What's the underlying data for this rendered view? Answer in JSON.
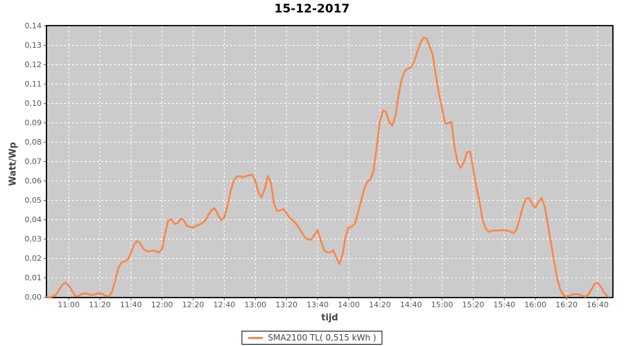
{
  "chart": {
    "title": "15-12-2017",
    "xlabel": "tijd",
    "ylabel": "Watt/Wp",
    "legend": {
      "label": "SMA2100 TL( 0,515 kWh )"
    },
    "colors": {
      "series": "#FA8648",
      "plot_bg": "#CBCBCB",
      "grid": "#FFFFFF",
      "plot_border": "#000000",
      "tick_text": "#555555",
      "axis_label_text": "#444444",
      "title_text": "#000000"
    }
  },
  "chart_data": {
    "type": "line",
    "title": "15-12-2017",
    "xlabel": "tijd",
    "ylabel": "Watt/Wp",
    "legend_position": "bottom-center",
    "grid": "white dashed gridlines on gray plot background",
    "ylim": [
      0.0,
      0.14
    ],
    "x_range_minutes": [
      645.7,
      1009.8
    ],
    "x_ticks": [
      "11:00",
      "11:20",
      "11:40",
      "12:00",
      "12:20",
      "12:40",
      "13:00",
      "13:20",
      "13:40",
      "14:00",
      "14:20",
      "14:40",
      "15:00",
      "15:20",
      "15:40",
      "16:00",
      "16:20",
      "16:40"
    ],
    "y_ticks": [
      {
        "value": 0.0,
        "label": "0,00"
      },
      {
        "value": 0.01,
        "label": "0,01"
      },
      {
        "value": 0.02,
        "label": "0,02"
      },
      {
        "value": 0.03,
        "label": "0,03"
      },
      {
        "value": 0.04,
        "label": "0,04"
      },
      {
        "value": 0.05,
        "label": "0,05"
      },
      {
        "value": 0.06,
        "label": "0,06"
      },
      {
        "value": 0.07,
        "label": "0,07"
      },
      {
        "value": 0.08,
        "label": "0,08"
      },
      {
        "value": 0.09,
        "label": "0,09"
      },
      {
        "value": 0.1,
        "label": "0,10"
      },
      {
        "value": 0.11,
        "label": "0,11"
      },
      {
        "value": 0.12,
        "label": "0,12"
      },
      {
        "value": 0.13,
        "label": "0,13"
      },
      {
        "value": 0.14,
        "label": "0,14"
      }
    ],
    "series": [
      {
        "name": "SMA2100 TL( 0,515 kWh )",
        "color": "#FA8648",
        "points": [
          [
            "10:46",
            0.0
          ],
          [
            "10:48",
            0.0
          ],
          [
            "10:50",
            0.0005
          ],
          [
            "10:52",
            0.0015
          ],
          [
            "10:54",
            0.004
          ],
          [
            "10:56",
            0.0065
          ],
          [
            "10:58",
            0.0075
          ],
          [
            "11:00",
            0.006
          ],
          [
            "11:02",
            0.0035
          ],
          [
            "11:04",
            0.0008
          ],
          [
            "11:06",
            0.0005
          ],
          [
            "11:08",
            0.0015
          ],
          [
            "11:10",
            0.002
          ],
          [
            "11:12",
            0.0018
          ],
          [
            "11:14",
            0.0012
          ],
          [
            "11:16",
            0.0012
          ],
          [
            "11:18",
            0.0018
          ],
          [
            "11:20",
            0.002
          ],
          [
            "11:22",
            0.0015
          ],
          [
            "11:24",
            0.0005
          ],
          [
            "11:26",
            0.0005
          ],
          [
            "11:28",
            0.003
          ],
          [
            "11:30",
            0.009
          ],
          [
            "11:32",
            0.0152
          ],
          [
            "11:34",
            0.018
          ],
          [
            "11:36",
            0.0185
          ],
          [
            "11:38",
            0.0195
          ],
          [
            "11:40",
            0.0228
          ],
          [
            "11:42",
            0.0272
          ],
          [
            "11:44",
            0.029
          ],
          [
            "11:46",
            0.0278
          ],
          [
            "11:48",
            0.025
          ],
          [
            "11:50",
            0.0238
          ],
          [
            "11:52",
            0.0236
          ],
          [
            "11:54",
            0.0242
          ],
          [
            "11:56",
            0.0238
          ],
          [
            "11:58",
            0.023
          ],
          [
            "12:00",
            0.0248
          ],
          [
            "12:02",
            0.033
          ],
          [
            "12:04",
            0.0395
          ],
          [
            "12:06",
            0.0403
          ],
          [
            "12:08",
            0.0378
          ],
          [
            "12:10",
            0.0382
          ],
          [
            "12:12",
            0.0405
          ],
          [
            "12:14",
            0.0398
          ],
          [
            "12:16",
            0.0368
          ],
          [
            "12:18",
            0.0362
          ],
          [
            "12:20",
            0.036
          ],
          [
            "12:22",
            0.0368
          ],
          [
            "12:24",
            0.0375
          ],
          [
            "12:26",
            0.0382
          ],
          [
            "12:28",
            0.0398
          ],
          [
            "12:30",
            0.0428
          ],
          [
            "12:32",
            0.0452
          ],
          [
            "12:34",
            0.0458
          ],
          [
            "12:36",
            0.0425
          ],
          [
            "12:38",
            0.0398
          ],
          [
            "12:40",
            0.0412
          ],
          [
            "12:42",
            0.047
          ],
          [
            "12:44",
            0.0545
          ],
          [
            "12:46",
            0.06
          ],
          [
            "12:48",
            0.0622
          ],
          [
            "12:50",
            0.0625
          ],
          [
            "12:52",
            0.0618
          ],
          [
            "12:54",
            0.0625
          ],
          [
            "12:56",
            0.063
          ],
          [
            "12:58",
            0.0632
          ],
          [
            "13:00",
            0.06
          ],
          [
            "13:02",
            0.054
          ],
          [
            "13:04",
            0.0515
          ],
          [
            "13:06",
            0.056
          ],
          [
            "13:08",
            0.0625
          ],
          [
            "13:10",
            0.059
          ],
          [
            "13:12",
            0.048
          ],
          [
            "13:14",
            0.0445
          ],
          [
            "13:16",
            0.0448
          ],
          [
            "13:18",
            0.0455
          ],
          [
            "13:20",
            0.0435
          ],
          [
            "13:22",
            0.041
          ],
          [
            "13:24",
            0.0398
          ],
          [
            "13:26",
            0.038
          ],
          [
            "13:28",
            0.0358
          ],
          [
            "13:30",
            0.0332
          ],
          [
            "13:32",
            0.0308
          ],
          [
            "13:34",
            0.0297
          ],
          [
            "13:36",
            0.0298
          ],
          [
            "13:38",
            0.0322
          ],
          [
            "13:40",
            0.0345
          ],
          [
            "13:42",
            0.0295
          ],
          [
            "13:44",
            0.0245
          ],
          [
            "13:46",
            0.0232
          ],
          [
            "13:48",
            0.023
          ],
          [
            "13:50",
            0.0243
          ],
          [
            "13:52",
            0.0205
          ],
          [
            "13:54",
            0.0172
          ],
          [
            "13:56",
            0.022
          ],
          [
            "13:58",
            0.0315
          ],
          [
            "14:00",
            0.036
          ],
          [
            "14:02",
            0.0365
          ],
          [
            "14:04",
            0.038
          ],
          [
            "14:06",
            0.044
          ],
          [
            "14:08",
            0.05
          ],
          [
            "14:10",
            0.056
          ],
          [
            "14:12",
            0.0598
          ],
          [
            "14:14",
            0.0608
          ],
          [
            "14:16",
            0.0655
          ],
          [
            "14:18",
            0.078
          ],
          [
            "14:20",
            0.0905
          ],
          [
            "14:22",
            0.0965
          ],
          [
            "14:24",
            0.0955
          ],
          [
            "14:26",
            0.0905
          ],
          [
            "14:28",
            0.0885
          ],
          [
            "14:30",
            0.0935
          ],
          [
            "14:32",
            0.104
          ],
          [
            "14:34",
            0.1125
          ],
          [
            "14:36",
            0.1168
          ],
          [
            "14:38",
            0.118
          ],
          [
            "14:40",
            0.1185
          ],
          [
            "14:42",
            0.1215
          ],
          [
            "14:44",
            0.1265
          ],
          [
            "14:46",
            0.131
          ],
          [
            "14:48",
            0.134
          ],
          [
            "14:50",
            0.1335
          ],
          [
            "14:52",
            0.1295
          ],
          [
            "14:54",
            0.125
          ],
          [
            "14:56",
            0.1145
          ],
          [
            "14:58",
            0.105
          ],
          [
            "15:00",
            0.0975
          ],
          [
            "15:02",
            0.0895
          ],
          [
            "15:04",
            0.0898
          ],
          [
            "15:06",
            0.0905
          ],
          [
            "15:08",
            0.0775
          ],
          [
            "15:10",
            0.0695
          ],
          [
            "15:12",
            0.0668
          ],
          [
            "15:14",
            0.0695
          ],
          [
            "15:16",
            0.0748
          ],
          [
            "15:18",
            0.0752
          ],
          [
            "15:20",
            0.0665
          ],
          [
            "15:22",
            0.057
          ],
          [
            "15:24",
            0.0495
          ],
          [
            "15:26",
            0.04
          ],
          [
            "15:28",
            0.0355
          ],
          [
            "15:30",
            0.0337
          ],
          [
            "15:32",
            0.0342
          ],
          [
            "15:34",
            0.0345
          ],
          [
            "15:36",
            0.0344
          ],
          [
            "15:38",
            0.0346
          ],
          [
            "15:40",
            0.0345
          ],
          [
            "15:42",
            0.0344
          ],
          [
            "15:44",
            0.0338
          ],
          [
            "15:46",
            0.033
          ],
          [
            "15:48",
            0.0352
          ],
          [
            "15:50",
            0.041
          ],
          [
            "15:52",
            0.047
          ],
          [
            "15:54",
            0.0508
          ],
          [
            "15:56",
            0.0512
          ],
          [
            "15:58",
            0.0478
          ],
          [
            "16:00",
            0.0462
          ],
          [
            "16:02",
            0.0492
          ],
          [
            "16:04",
            0.0513
          ],
          [
            "16:06",
            0.0468
          ],
          [
            "16:08",
            0.0375
          ],
          [
            "16:10",
            0.028
          ],
          [
            "16:12",
            0.0185
          ],
          [
            "16:14",
            0.0095
          ],
          [
            "16:16",
            0.0038
          ],
          [
            "16:18",
            0.0012
          ],
          [
            "16:20",
            0.0002
          ],
          [
            "16:22",
            0.0008
          ],
          [
            "16:24",
            0.0015
          ],
          [
            "16:26",
            0.0015
          ],
          [
            "16:28",
            0.0015
          ],
          [
            "16:30",
            0.0008
          ],
          [
            "16:32",
            0.0002
          ],
          [
            "16:34",
            0.0012
          ],
          [
            "16:36",
            0.004
          ],
          [
            "16:38",
            0.0068
          ],
          [
            "16:40",
            0.0075
          ],
          [
            "16:42",
            0.0055
          ],
          [
            "16:44",
            0.0025
          ],
          [
            "16:46",
            0.0008
          ],
          [
            "16:47",
            0.0003
          ]
        ]
      }
    ]
  }
}
